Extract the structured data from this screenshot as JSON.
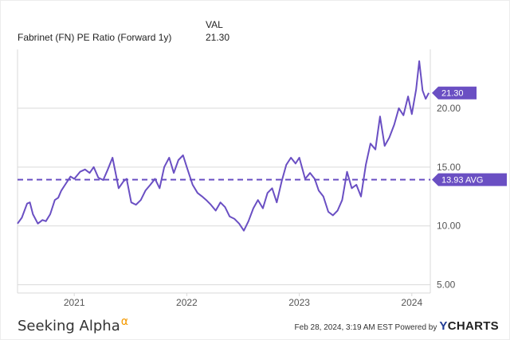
{
  "legend": {
    "header": "VAL",
    "name": "Fabrinet (FN) PE Ratio (Forward 1y)",
    "value": "21.30"
  },
  "footer": {
    "brand": "Seeking Alpha",
    "brand_symbol": "α",
    "timestamp": "Feb 28, 2024, 3:19 AM EST Powered by",
    "provider_mark": "Y",
    "provider_rest": "CHARTS"
  },
  "colors": {
    "line": "#6a4fc3",
    "badge": "#6a4fc3",
    "axis_text": "#555555",
    "grid": "#d9d9d9",
    "alpha": "#f59a00"
  },
  "chart_data": {
    "type": "line",
    "title": "",
    "xlabel": "",
    "ylabel": "",
    "x_tick_labels": [
      "2021",
      "2022",
      "2023",
      "2024"
    ],
    "x_tick_values": [
      "2021-01-01",
      "2022-01-01",
      "2023-01-01",
      "2024-01-01"
    ],
    "y_tick_labels": [
      "5.00",
      "10.00",
      "15.00",
      "20.00"
    ],
    "y_tick_values": [
      5,
      10,
      15,
      20
    ],
    "xlim": [
      "2020-07-01",
      "2024-03-01"
    ],
    "ylim": [
      4.3,
      25
    ],
    "grid": "horizontal",
    "series": [
      {
        "name": "Fabrinet (FN) PE Ratio (Forward 1y)",
        "x": [
          "2020-07-01",
          "2020-07-15",
          "2020-08-01",
          "2020-08-10",
          "2020-08-20",
          "2020-09-05",
          "2020-09-20",
          "2020-10-01",
          "2020-10-15",
          "2020-10-30",
          "2020-11-10",
          "2020-11-20",
          "2020-12-05",
          "2020-12-20",
          "2021-01-01",
          "2021-01-20",
          "2021-02-05",
          "2021-02-20",
          "2021-03-05",
          "2021-03-20",
          "2021-04-05",
          "2021-04-20",
          "2021-05-05",
          "2021-05-25",
          "2021-06-10",
          "2021-06-20",
          "2021-07-05",
          "2021-07-20",
          "2021-08-05",
          "2021-08-20",
          "2021-09-05",
          "2021-09-20",
          "2021-10-05",
          "2021-10-20",
          "2021-11-05",
          "2021-11-20",
          "2021-12-05",
          "2021-12-20",
          "2022-01-01",
          "2022-01-20",
          "2022-02-05",
          "2022-02-20",
          "2022-03-05",
          "2022-03-20",
          "2022-04-05",
          "2022-04-20",
          "2022-05-05",
          "2022-05-20",
          "2022-06-05",
          "2022-06-20",
          "2022-07-05",
          "2022-07-20",
          "2022-08-05",
          "2022-08-20",
          "2022-09-05",
          "2022-09-20",
          "2022-10-05",
          "2022-10-20",
          "2022-11-05",
          "2022-11-20",
          "2022-12-05",
          "2022-12-20",
          "2023-01-01",
          "2023-01-20",
          "2023-02-05",
          "2023-02-20",
          "2023-03-05",
          "2023-03-20",
          "2023-04-05",
          "2023-04-20",
          "2023-05-05",
          "2023-05-20",
          "2023-06-05",
          "2023-06-20",
          "2023-07-05",
          "2023-07-20",
          "2023-08-05",
          "2023-08-20",
          "2023-09-05",
          "2023-09-20",
          "2023-10-05",
          "2023-10-20",
          "2023-11-05",
          "2023-11-20",
          "2023-12-05",
          "2023-12-20",
          "2024-01-01",
          "2024-01-15",
          "2024-01-25",
          "2024-02-05",
          "2024-02-15",
          "2024-02-25"
        ],
        "y": [
          10.2,
          10.7,
          11.9,
          12.0,
          11.0,
          10.2,
          10.5,
          10.4,
          11.0,
          12.2,
          12.4,
          13.0,
          13.6,
          14.2,
          14.0,
          14.6,
          14.8,
          14.5,
          15.0,
          14.1,
          13.9,
          14.8,
          15.8,
          13.2,
          13.8,
          14.0,
          12.0,
          11.8,
          12.2,
          13.0,
          13.5,
          14.0,
          13.2,
          15.0,
          15.8,
          14.5,
          15.6,
          16.0,
          15.0,
          13.5,
          12.8,
          12.5,
          12.2,
          11.8,
          11.3,
          12.0,
          11.6,
          10.8,
          10.6,
          10.2,
          9.6,
          10.4,
          11.5,
          12.2,
          11.5,
          12.8,
          13.2,
          12.0,
          13.8,
          15.2,
          15.8,
          15.3,
          15.8,
          14.0,
          14.5,
          14.0,
          13.0,
          12.5,
          11.2,
          10.9,
          11.3,
          12.2,
          14.6,
          13.2,
          13.5,
          12.5,
          15.2,
          17.0,
          16.5,
          19.3,
          16.8,
          17.5,
          18.6,
          20.0,
          19.4,
          21.0,
          19.5,
          21.6,
          24.0,
          21.5,
          20.8,
          21.3
        ]
      }
    ],
    "reference_lines": [
      {
        "name": "AVG",
        "value": 13.93,
        "label": "13.93 AVG",
        "style": "dashed"
      }
    ],
    "last_value_badge": "21.30"
  }
}
